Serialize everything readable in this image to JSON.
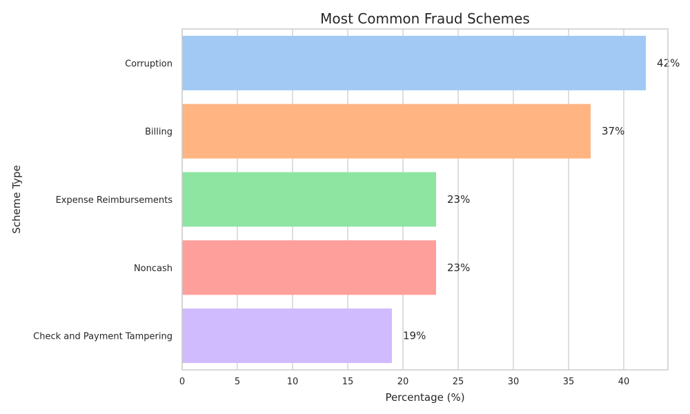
{
  "chart_data": {
    "type": "bar",
    "orientation": "horizontal",
    "title": "Most Common Fraud Schemes",
    "xlabel": "Percentage (%)",
    "ylabel": "Scheme Type",
    "xlim": [
      0,
      44
    ],
    "xticks": [
      0,
      5,
      10,
      15,
      20,
      25,
      30,
      35,
      40
    ],
    "grid": true,
    "categories": [
      "Corruption",
      "Billing",
      "Expense Reimbursements",
      "Noncash",
      "Check and Payment Tampering"
    ],
    "values": [
      42,
      37,
      23,
      23,
      19
    ],
    "value_labels": [
      "42%",
      "37%",
      "23%",
      "23%",
      "19%"
    ],
    "colors": [
      "#a1c9f4",
      "#ffb482",
      "#8de5a1",
      "#ff9f9b",
      "#d0bbff"
    ]
  }
}
